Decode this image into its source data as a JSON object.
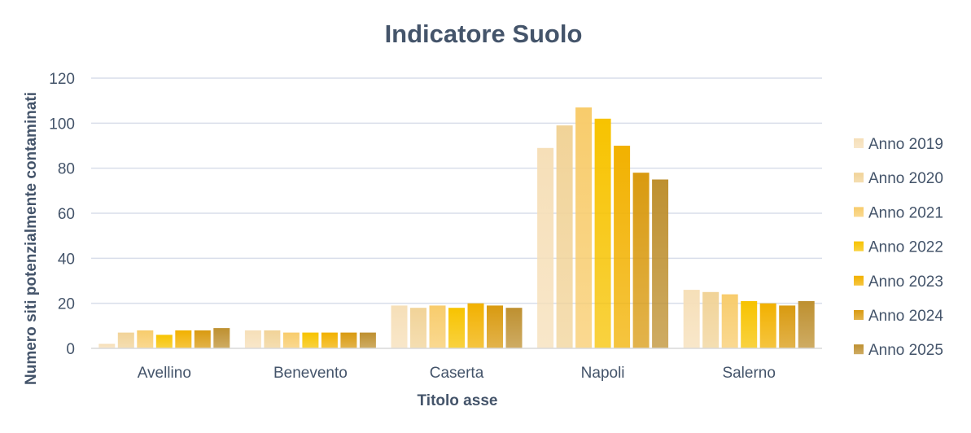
{
  "chart_data": {
    "type": "bar",
    "title": "Indicatore Suolo",
    "xlabel": "Titolo asse",
    "ylabel": "Numero siti potenzialmente contaminati",
    "ylim": [
      0,
      120
    ],
    "yticks": [
      0,
      20,
      40,
      60,
      80,
      100,
      120
    ],
    "grid": true,
    "legend_position": "right",
    "categories": [
      "Avellino",
      "Benevento",
      "Caserta",
      "Napoli",
      "Salerno"
    ],
    "series": [
      {
        "name": "Anno 2019",
        "color": "#F6DFB8",
        "values": [
          2,
          8,
          19,
          89,
          26
        ]
      },
      {
        "name": "Anno 2020",
        "color": "#F1D398",
        "values": [
          7,
          8,
          18,
          99,
          25
        ]
      },
      {
        "name": "Anno 2021",
        "color": "#F8CC6C",
        "values": [
          8,
          7,
          19,
          107,
          24
        ]
      },
      {
        "name": "Anno 2022",
        "color": "#F7C300",
        "values": [
          6,
          7,
          18,
          102,
          21
        ]
      },
      {
        "name": "Anno 2023",
        "color": "#F2B100",
        "values": [
          8,
          7,
          20,
          90,
          20
        ]
      },
      {
        "name": "Anno 2024",
        "color": "#D99A10",
        "values": [
          8,
          7,
          19,
          78,
          19
        ]
      },
      {
        "name": "Anno 2025",
        "color": "#BE9030",
        "values": [
          9,
          7,
          18,
          75,
          21
        ]
      }
    ]
  }
}
